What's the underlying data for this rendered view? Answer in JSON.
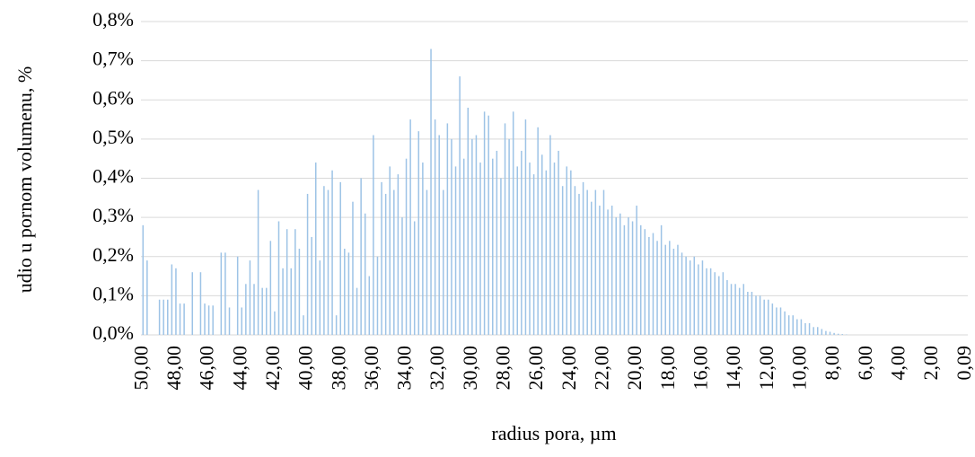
{
  "chart_data": {
    "type": "bar",
    "y_label": "udio u pornom volumenu, %",
    "x_label": "radius pora, µm",
    "color": "#9dc3e6",
    "grid": true,
    "ylim": [
      0,
      0.8
    ],
    "yticks": [
      {
        "value": 0,
        "label": "0,0%"
      },
      {
        "value": 0.1,
        "label": "0,1%"
      },
      {
        "value": 0.2,
        "label": "0,2%"
      },
      {
        "value": 0.3,
        "label": "0,3%"
      },
      {
        "value": 0.4,
        "label": "0,4%"
      },
      {
        "value": 0.5,
        "label": "0,5%"
      },
      {
        "value": 0.6,
        "label": "0,6%"
      },
      {
        "value": 0.7,
        "label": "0,7%"
      },
      {
        "value": 0.8,
        "label": "0,8%"
      }
    ],
    "categories": [
      "50,00",
      null,
      null,
      null,
      null,
      null,
      null,
      null,
      "48,00",
      null,
      null,
      null,
      null,
      null,
      null,
      null,
      "46,00",
      null,
      null,
      null,
      null,
      null,
      null,
      null,
      "44,00",
      null,
      null,
      null,
      null,
      null,
      null,
      null,
      "42,00",
      null,
      null,
      null,
      null,
      null,
      null,
      null,
      "40,00",
      null,
      null,
      null,
      null,
      null,
      null,
      null,
      "38,00",
      null,
      null,
      null,
      null,
      null,
      null,
      null,
      "36,00",
      null,
      null,
      null,
      null,
      null,
      null,
      null,
      "34,00",
      null,
      null,
      null,
      null,
      null,
      null,
      null,
      "32,00",
      null,
      null,
      null,
      null,
      null,
      null,
      null,
      "30,00",
      null,
      null,
      null,
      null,
      null,
      null,
      null,
      "28,00",
      null,
      null,
      null,
      null,
      null,
      null,
      null,
      "26,00",
      null,
      null,
      null,
      null,
      null,
      null,
      null,
      "24,00",
      null,
      null,
      null,
      null,
      null,
      null,
      null,
      "22,00",
      null,
      null,
      null,
      null,
      null,
      null,
      null,
      "20,00",
      null,
      null,
      null,
      null,
      null,
      null,
      null,
      "18,00",
      null,
      null,
      null,
      null,
      null,
      null,
      null,
      "16,00",
      null,
      null,
      null,
      null,
      null,
      null,
      null,
      "14,00",
      null,
      null,
      null,
      null,
      null,
      null,
      null,
      "12,00",
      null,
      null,
      null,
      null,
      null,
      null,
      null,
      "10,00",
      null,
      null,
      null,
      null,
      null,
      null,
      null,
      "8,00",
      null,
      null,
      null,
      null,
      null,
      null,
      null,
      "6,00",
      null,
      null,
      null,
      null,
      null,
      null,
      null,
      "4,00",
      null,
      null,
      null,
      null,
      null,
      null,
      null,
      "2,00",
      null,
      null,
      null,
      null,
      null,
      null,
      null,
      "0,09"
    ],
    "values": [
      0.28,
      0.19,
      0,
      0,
      0.09,
      0.09,
      0.09,
      0.18,
      0.17,
      0.08,
      0.08,
      0,
      0.16,
      0,
      0.16,
      0.08,
      0.075,
      0.075,
      0,
      0.21,
      0.21,
      0.07,
      0,
      0.2,
      0.07,
      0.13,
      0.19,
      0.13,
      0.37,
      0.12,
      0.12,
      0.24,
      0.06,
      0.29,
      0.17,
      0.27,
      0.17,
      0.27,
      0.22,
      0.05,
      0.36,
      0.25,
      0.44,
      0.19,
      0.38,
      0.37,
      0.42,
      0.05,
      0.39,
      0.22,
      0.21,
      0.34,
      0.12,
      0.4,
      0.31,
      0.15,
      0.51,
      0.2,
      0.39,
      0.36,
      0.43,
      0.37,
      0.41,
      0.3,
      0.45,
      0.55,
      0.29,
      0.52,
      0.44,
      0.37,
      0.73,
      0.55,
      0.51,
      0.37,
      0.54,
      0.5,
      0.43,
      0.66,
      0.45,
      0.58,
      0.5,
      0.51,
      0.44,
      0.57,
      0.56,
      0.45,
      0.47,
      0.4,
      0.54,
      0.5,
      0.57,
      0.43,
      0.47,
      0.55,
      0.44,
      0.41,
      0.53,
      0.46,
      0.42,
      0.51,
      0.44,
      0.47,
      0.38,
      0.43,
      0.42,
      0.38,
      0.36,
      0.39,
      0.37,
      0.34,
      0.37,
      0.33,
      0.37,
      0.32,
      0.33,
      0.3,
      0.31,
      0.28,
      0.3,
      0.29,
      0.33,
      0.28,
      0.27,
      0.25,
      0.26,
      0.24,
      0.28,
      0.23,
      0.24,
      0.22,
      0.23,
      0.21,
      0.2,
      0.19,
      0.2,
      0.18,
      0.19,
      0.17,
      0.17,
      0.16,
      0.15,
      0.16,
      0.14,
      0.13,
      0.13,
      0.12,
      0.13,
      0.11,
      0.11,
      0.1,
      0.1,
      0.09,
      0.09,
      0.08,
      0.07,
      0.07,
      0.06,
      0.05,
      0.05,
      0.04,
      0.04,
      0.03,
      0.03,
      0.02,
      0.02,
      0.015,
      0.01,
      0.008,
      0.005,
      0.003,
      0.002,
      0.001,
      0,
      0,
      0,
      0,
      0,
      0,
      0,
      0,
      0,
      0,
      0,
      0,
      0,
      0,
      0,
      0,
      0,
      0,
      0,
      0,
      0,
      0,
      0,
      0,
      0,
      0,
      0,
      0,
      0
    ]
  }
}
